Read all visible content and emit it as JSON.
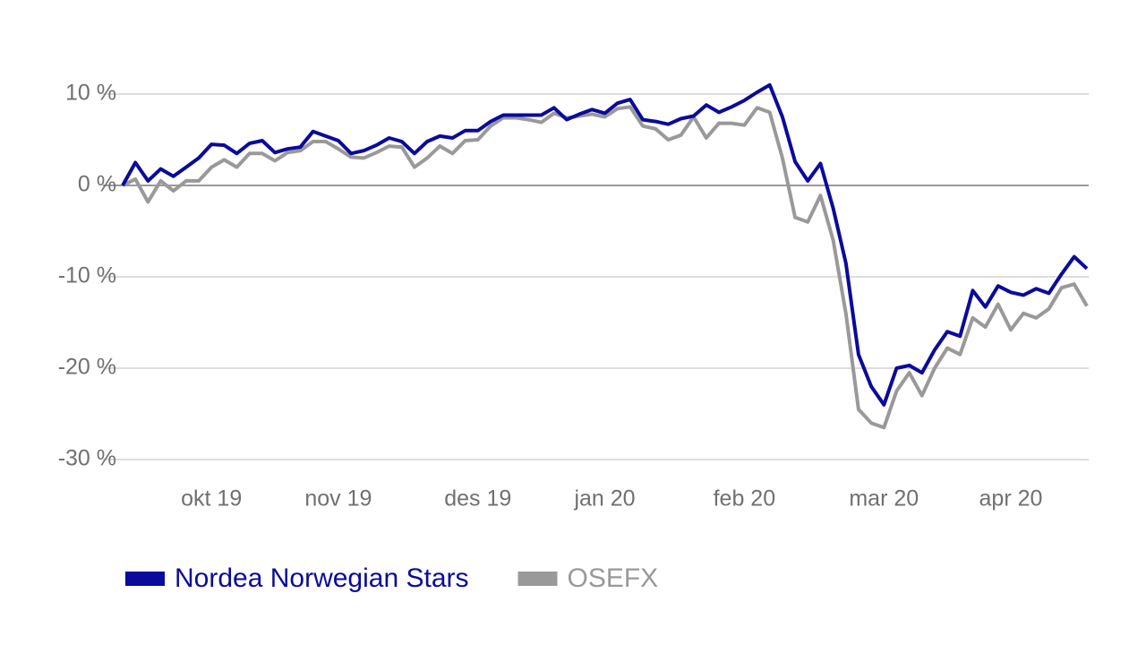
{
  "chart_data": {
    "type": "line",
    "categories": [
      null,
      null,
      null,
      null,
      null,
      null,
      null,
      "okt 19",
      null,
      null,
      null,
      null,
      null,
      null,
      null,
      null,
      null,
      "nov 19",
      null,
      null,
      null,
      null,
      null,
      null,
      null,
      null,
      null,
      null,
      "des 19",
      null,
      null,
      null,
      null,
      null,
      null,
      null,
      null,
      null,
      "jan 20",
      null,
      null,
      null,
      null,
      null,
      null,
      null,
      null,
      null,
      null,
      "feb 20",
      null,
      null,
      null,
      null,
      null,
      null,
      null,
      null,
      null,
      null,
      "mar 20",
      null,
      null,
      null,
      null,
      null,
      null,
      null,
      null,
      null,
      "apr 20",
      null,
      null,
      null,
      null,
      null,
      null
    ],
    "series": [
      {
        "name": "Nordea Norwegian Stars",
        "color": "#0a0a9c",
        "values": [
          0,
          2.5,
          0.5,
          1.8,
          1.0,
          2.0,
          3.0,
          4.5,
          4.4,
          3.5,
          4.6,
          4.9,
          3.6,
          4.0,
          4.2,
          5.9,
          5.4,
          4.9,
          3.5,
          3.8,
          4.4,
          5.2,
          4.8,
          3.5,
          4.8,
          5.4,
          5.2,
          6.0,
          6.0,
          7.0,
          7.7,
          7.7,
          7.7,
          7.7,
          8.5,
          7.2,
          7.8,
          8.3,
          7.9,
          9.0,
          9.4,
          7.2,
          7.0,
          6.7,
          7.3,
          7.6,
          8.8,
          8.0,
          8.6,
          9.3,
          10.2,
          11.0,
          7.5,
          2.6,
          0.5,
          2.4,
          -2.5,
          -8.5,
          -18.5,
          -22.0,
          -24.0,
          -20.0,
          -19.7,
          -20.5,
          -18.0,
          -16.0,
          -16.5,
          -11.5,
          -13.3,
          -11.0,
          -11.7,
          -12.0,
          -11.3,
          -11.8,
          -9.7,
          -7.8,
          -9.1
        ]
      },
      {
        "name": "OSEFX",
        "color": "#999999",
        "values": [
          0,
          0.7,
          -1.8,
          0.5,
          -0.6,
          0.5,
          0.5,
          2.0,
          2.8,
          2.0,
          3.5,
          3.5,
          2.7,
          3.6,
          3.8,
          4.8,
          4.8,
          4.0,
          3.1,
          3.0,
          3.6,
          4.3,
          4.2,
          2.0,
          3.0,
          4.3,
          3.5,
          4.9,
          5.0,
          6.5,
          7.4,
          7.4,
          7.2,
          6.9,
          7.9,
          7.4,
          7.6,
          7.8,
          7.5,
          8.4,
          8.6,
          6.5,
          6.2,
          5.0,
          5.5,
          7.5,
          5.2,
          6.8,
          6.8,
          6.6,
          8.5,
          8.0,
          3.0,
          -3.5,
          -4.0,
          -1.1,
          -6.0,
          -14.0,
          -24.5,
          -26.0,
          -26.5,
          -22.5,
          -20.5,
          -23.0,
          -20.0,
          -17.8,
          -18.5,
          -14.5,
          -15.5,
          -13.0,
          -15.8,
          -14.0,
          -14.5,
          -13.5,
          -11.2,
          -10.8,
          -13.2
        ]
      }
    ],
    "ylim": [
      -30,
      15
    ],
    "yticks": [
      {
        "value": -30,
        "label": "-30 %"
      },
      {
        "value": -20,
        "label": "-20 %"
      },
      {
        "value": -10,
        "label": "-10 %"
      },
      {
        "value": 0,
        "label": "0 %"
      },
      {
        "value": 10,
        "label": "10 %"
      }
    ],
    "grid": true
  }
}
